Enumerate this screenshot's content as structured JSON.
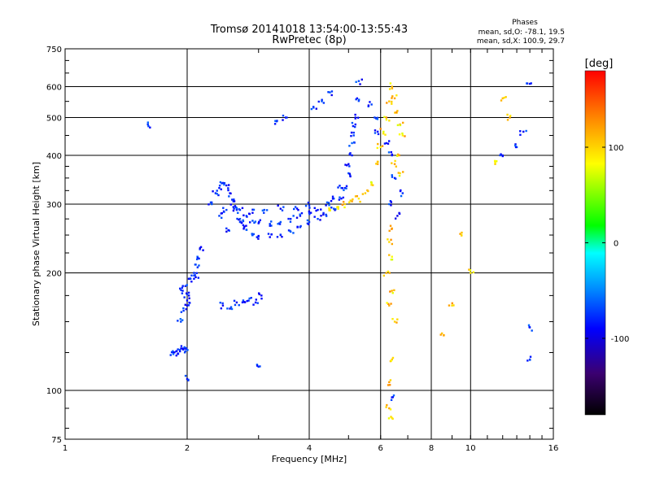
{
  "chart_data": {
    "type": "scatter",
    "title": "Tromsø 20141018 13:54:00-13:55:43",
    "subtitle": "RwPretec (8p)",
    "xlabel": "Frequency [MHz]",
    "ylabel": "Stationary phase Virtual Height [km]",
    "x_scale": "log",
    "y_scale": "log",
    "xlim": [
      1,
      16
    ],
    "ylim": [
      75,
      750
    ],
    "xticks": [
      1,
      2,
      4,
      6,
      8,
      10,
      16
    ],
    "xtick_labels": [
      "1",
      "2",
      "4",
      "6",
      "8",
      "10",
      "16"
    ],
    "yticks": [
      75,
      100,
      200,
      300,
      400,
      500,
      600,
      750
    ],
    "ytick_labels": [
      "75",
      "100",
      "200",
      "300",
      "400",
      "500",
      "600",
      "750"
    ],
    "grid": true,
    "phases": {
      "title": "Phases",
      "line1": "mean, sd,O: -78.1, 19.5",
      "line2": "mean, sd,X: 100.9, 29.7"
    },
    "colorbar": {
      "unit": "[deg]",
      "range": [
        -180,
        180
      ],
      "ticks": [
        "100",
        "0",
        "-100"
      ],
      "tick_values": [
        100,
        0,
        -100
      ],
      "colormap": [
        "#000000",
        "#3b0070",
        "#0000ff",
        "#0090ff",
        "#00ffff",
        "#00ff00",
        "#ffff00",
        "#ff8000",
        "#ff0000"
      ]
    },
    "series": [
      {
        "mode": "O",
        "phase_mean": -78.1,
        "phase_sd": 19.5,
        "points": [
          [
            1.85,
            125
          ],
          [
            1.88,
            126
          ],
          [
            1.92,
            127
          ],
          [
            1.95,
            128
          ],
          [
            1.98,
            126
          ],
          [
            1.9,
            124
          ],
          [
            1.97,
            129
          ],
          [
            1.93,
            150
          ],
          [
            1.96,
            160
          ],
          [
            2.0,
            170
          ],
          [
            2.02,
            175
          ],
          [
            1.98,
            185
          ],
          [
            2.05,
            190
          ],
          [
            2.08,
            200
          ],
          [
            2.1,
            210
          ],
          [
            2.12,
            220
          ],
          [
            2.15,
            230
          ],
          [
            2.1,
            195
          ],
          [
            1.95,
            180
          ],
          [
            2.0,
            165
          ],
          [
            2.3,
            300
          ],
          [
            2.35,
            320
          ],
          [
            2.4,
            330
          ],
          [
            2.45,
            340
          ],
          [
            2.5,
            335
          ],
          [
            2.55,
            320
          ],
          [
            2.6,
            305
          ],
          [
            2.65,
            290
          ],
          [
            2.7,
            275
          ],
          [
            2.75,
            265
          ],
          [
            2.8,
            258
          ],
          [
            2.9,
            250
          ],
          [
            3.0,
            248
          ],
          [
            3.2,
            247
          ],
          [
            3.4,
            250
          ],
          [
            3.6,
            255
          ],
          [
            3.8,
            262
          ],
          [
            4.0,
            270
          ],
          [
            4.2,
            275
          ],
          [
            4.4,
            282
          ],
          [
            4.6,
            292
          ],
          [
            4.8,
            310
          ],
          [
            4.9,
            330
          ],
          [
            5.0,
            360
          ],
          [
            5.1,
            400
          ],
          [
            5.15,
            450
          ],
          [
            5.2,
            500
          ],
          [
            5.25,
            560
          ],
          [
            5.3,
            620
          ],
          [
            2.4,
            280
          ],
          [
            2.5,
            290
          ],
          [
            2.6,
            295
          ],
          [
            2.7,
            290
          ],
          [
            2.8,
            280
          ],
          [
            2.9,
            272
          ],
          [
            3.0,
            268
          ],
          [
            3.2,
            267
          ],
          [
            3.4,
            270
          ],
          [
            3.6,
            275
          ],
          [
            3.8,
            280
          ],
          [
            4.0,
            285
          ],
          [
            4.2,
            290
          ],
          [
            4.4,
            298
          ],
          [
            4.6,
            310
          ],
          [
            4.8,
            330
          ],
          [
            5.0,
            380
          ],
          [
            5.1,
            430
          ],
          [
            5.2,
            480
          ],
          [
            2.5,
            260
          ],
          [
            2.7,
            270
          ],
          [
            2.9,
            285
          ],
          [
            3.1,
            290
          ],
          [
            3.4,
            292
          ],
          [
            3.7,
            295
          ],
          [
            4.0,
            298
          ],
          [
            2.45,
            165
          ],
          [
            2.55,
            162
          ],
          [
            2.65,
            168
          ],
          [
            2.75,
            170
          ],
          [
            2.85,
            172
          ],
          [
            2.95,
            168
          ],
          [
            3.05,
            175
          ],
          [
            1.6,
            480
          ],
          [
            3.3,
            490
          ],
          [
            3.5,
            500
          ],
          [
            4.1,
            530
          ],
          [
            4.3,
            555
          ],
          [
            4.5,
            580
          ],
          [
            5.7,
            540
          ],
          [
            5.8,
            500
          ],
          [
            5.9,
            460
          ],
          [
            6.2,
            430
          ],
          [
            6.4,
            400
          ],
          [
            6.5,
            350
          ],
          [
            6.8,
            320
          ],
          [
            6.3,
            300
          ],
          [
            6.6,
            280
          ],
          [
            3.0,
            115
          ],
          [
            2.0,
            107
          ],
          [
            14.0,
            610
          ],
          [
            13.5,
            460
          ],
          [
            13.0,
            420
          ],
          [
            12.0,
            400
          ],
          [
            14.0,
            145
          ],
          [
            14.0,
            120
          ],
          [
            6.4,
            96
          ]
        ]
      },
      {
        "mode": "X",
        "phase_mean": 100.9,
        "phase_sd": 29.7,
        "points": [
          [
            4.5,
            290
          ],
          [
            4.7,
            295
          ],
          [
            4.9,
            300
          ],
          [
            5.1,
            305
          ],
          [
            5.3,
            310
          ],
          [
            5.5,
            320
          ],
          [
            5.7,
            340
          ],
          [
            5.9,
            380
          ],
          [
            6.0,
            420
          ],
          [
            6.1,
            460
          ],
          [
            6.2,
            500
          ],
          [
            6.3,
            550
          ],
          [
            6.4,
            600
          ],
          [
            6.5,
            560
          ],
          [
            6.6,
            520
          ],
          [
            6.7,
            480
          ],
          [
            6.8,
            450
          ],
          [
            6.6,
            400
          ],
          [
            6.5,
            380
          ],
          [
            6.7,
            360
          ],
          [
            6.4,
            260
          ],
          [
            6.3,
            240
          ],
          [
            6.4,
            220
          ],
          [
            6.2,
            200
          ],
          [
            6.4,
            180
          ],
          [
            6.3,
            165
          ],
          [
            6.5,
            150
          ],
          [
            6.4,
            120
          ],
          [
            6.3,
            105
          ],
          [
            6.3,
            90
          ],
          [
            6.4,
            85
          ],
          [
            12.0,
            560
          ],
          [
            12.5,
            500
          ],
          [
            11.5,
            380
          ],
          [
            9.5,
            250
          ],
          [
            8.5,
            140
          ],
          [
            9.0,
            165
          ],
          [
            10.0,
            200
          ]
        ]
      }
    ]
  }
}
